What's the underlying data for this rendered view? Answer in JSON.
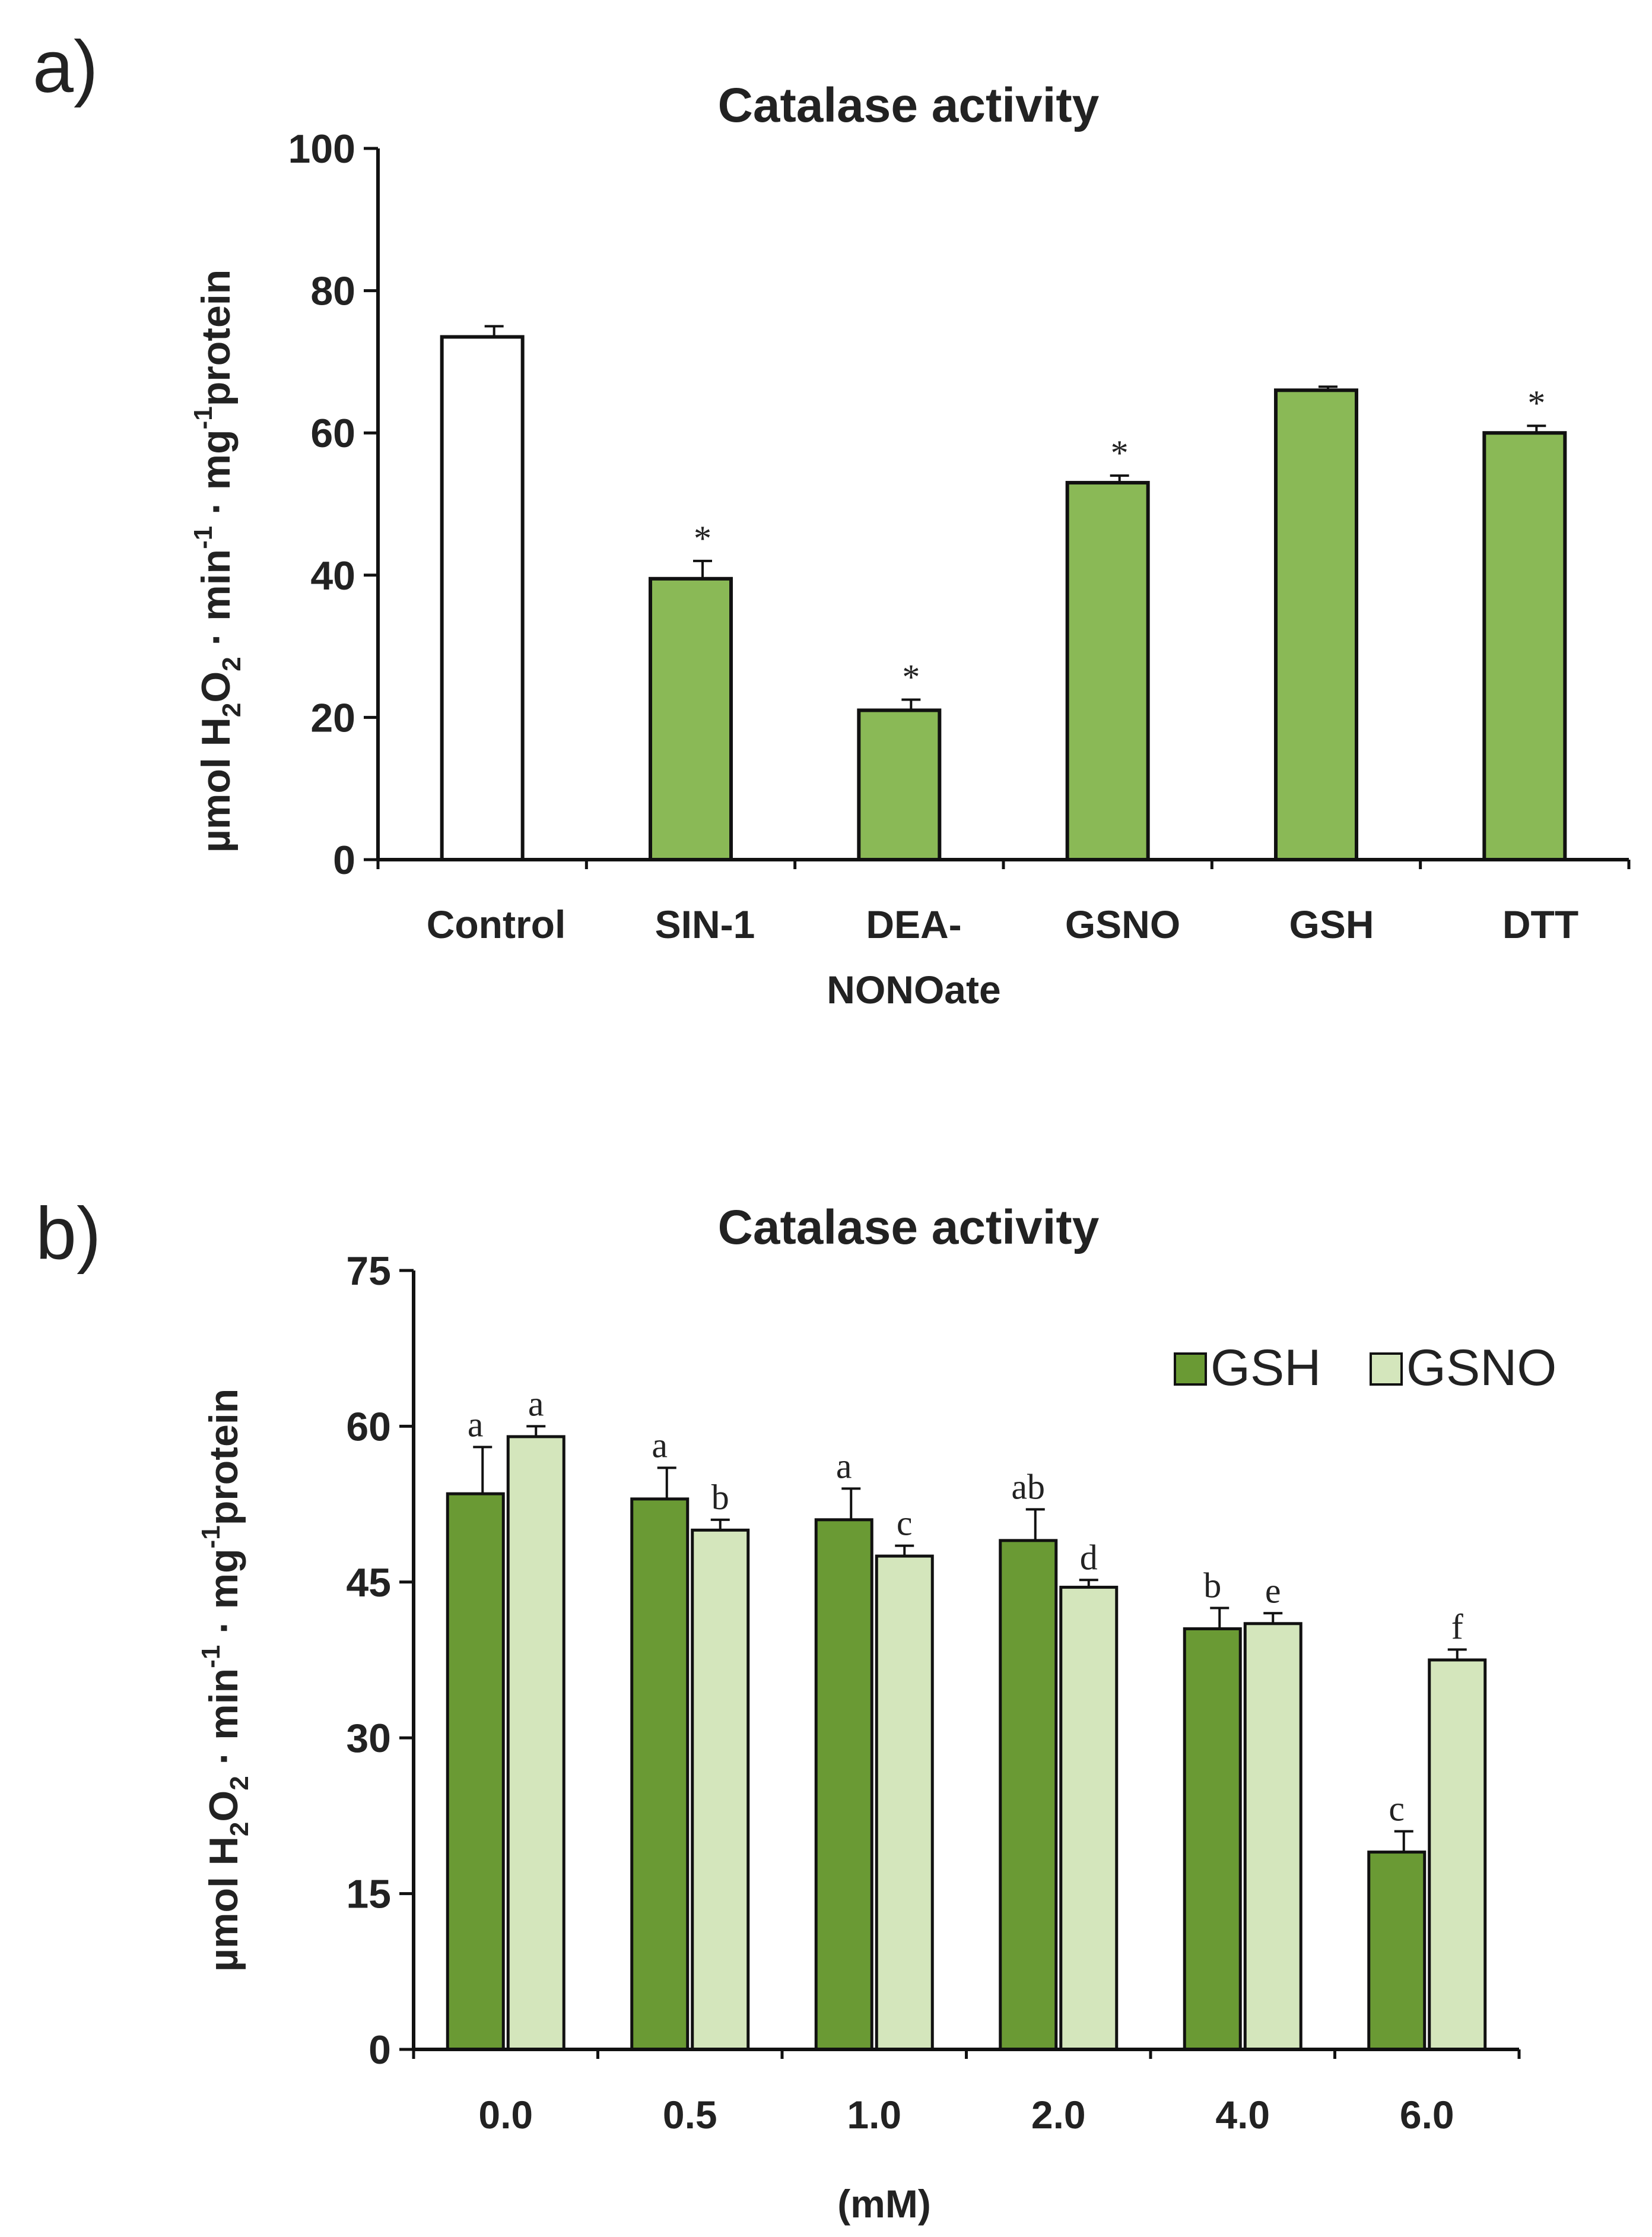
{
  "colors": {
    "control_bar": "#ffffff",
    "treatment_bar": "#8ab956",
    "gsh_bar": "#6a9a34",
    "gsno_bar": "#d4e6bc",
    "axis": "#111111"
  },
  "chart_data": [
    {
      "panel_label": "a)",
      "type": "bar",
      "title": "Catalase activity",
      "ylabel": {
        "prefix": "µmol H",
        "sub1": "2",
        "mid1": "O",
        "sub2": "2",
        "mid2": " · min",
        "sup1": "-1",
        "mid3": " · mg",
        "sup2": "-1",
        "suffix": "protein"
      },
      "xlabel": "",
      "ylim": [
        0,
        100
      ],
      "yticks": [
        "0",
        "20",
        "40",
        "60",
        "80",
        "100"
      ],
      "categories": [
        {
          "line1": "Control",
          "line2": ""
        },
        {
          "line1": "SIN-1",
          "line2": ""
        },
        {
          "line1": "DEA-",
          "line2": "NONOate"
        },
        {
          "line1": "GSNO",
          "line2": ""
        },
        {
          "line1": "GSH",
          "line2": ""
        },
        {
          "line1": "DTT",
          "line2": ""
        }
      ],
      "values": [
        73.5,
        39.5,
        21,
        53,
        66,
        60
      ],
      "errors": [
        1.5,
        2.5,
        1.5,
        1,
        0.5,
        1
      ],
      "markers": [
        "",
        "*",
        "*",
        "*",
        "",
        "*"
      ]
    },
    {
      "panel_label": "b)",
      "type": "bar",
      "title": "Catalase activity",
      "ylabel": {
        "prefix": "µmol H",
        "sub1": "2",
        "mid1": "O",
        "sub2": "2",
        "mid2": " · min",
        "sup1": "-1",
        "mid3": " · mg",
        "sup2": "-1",
        "suffix": "protein"
      },
      "xlabel": "(mM)",
      "ylim": [
        0,
        75
      ],
      "yticks": [
        "0",
        "15",
        "30",
        "45",
        "60",
        "75"
      ],
      "categories": [
        "0.0",
        "0.5",
        "1.0",
        "2.0",
        "4.0",
        "6.0"
      ],
      "legend": {
        "position": "top-right"
      },
      "series": [
        {
          "name": "GSH",
          "values": [
            53.5,
            53,
            51,
            49,
            40.5,
            19
          ],
          "errors": [
            4.5,
            3,
            3,
            3,
            2,
            2
          ],
          "letters": [
            "a",
            "a",
            "a",
            "ab",
            "b",
            "c"
          ]
        },
        {
          "name": "GSNO",
          "values": [
            59,
            50,
            47.5,
            44.5,
            41,
            37.5
          ],
          "errors": [
            1,
            1,
            1,
            0.7,
            1,
            1
          ],
          "letters": [
            "a",
            "b",
            "c",
            "d",
            "e",
            "f"
          ]
        }
      ]
    }
  ]
}
